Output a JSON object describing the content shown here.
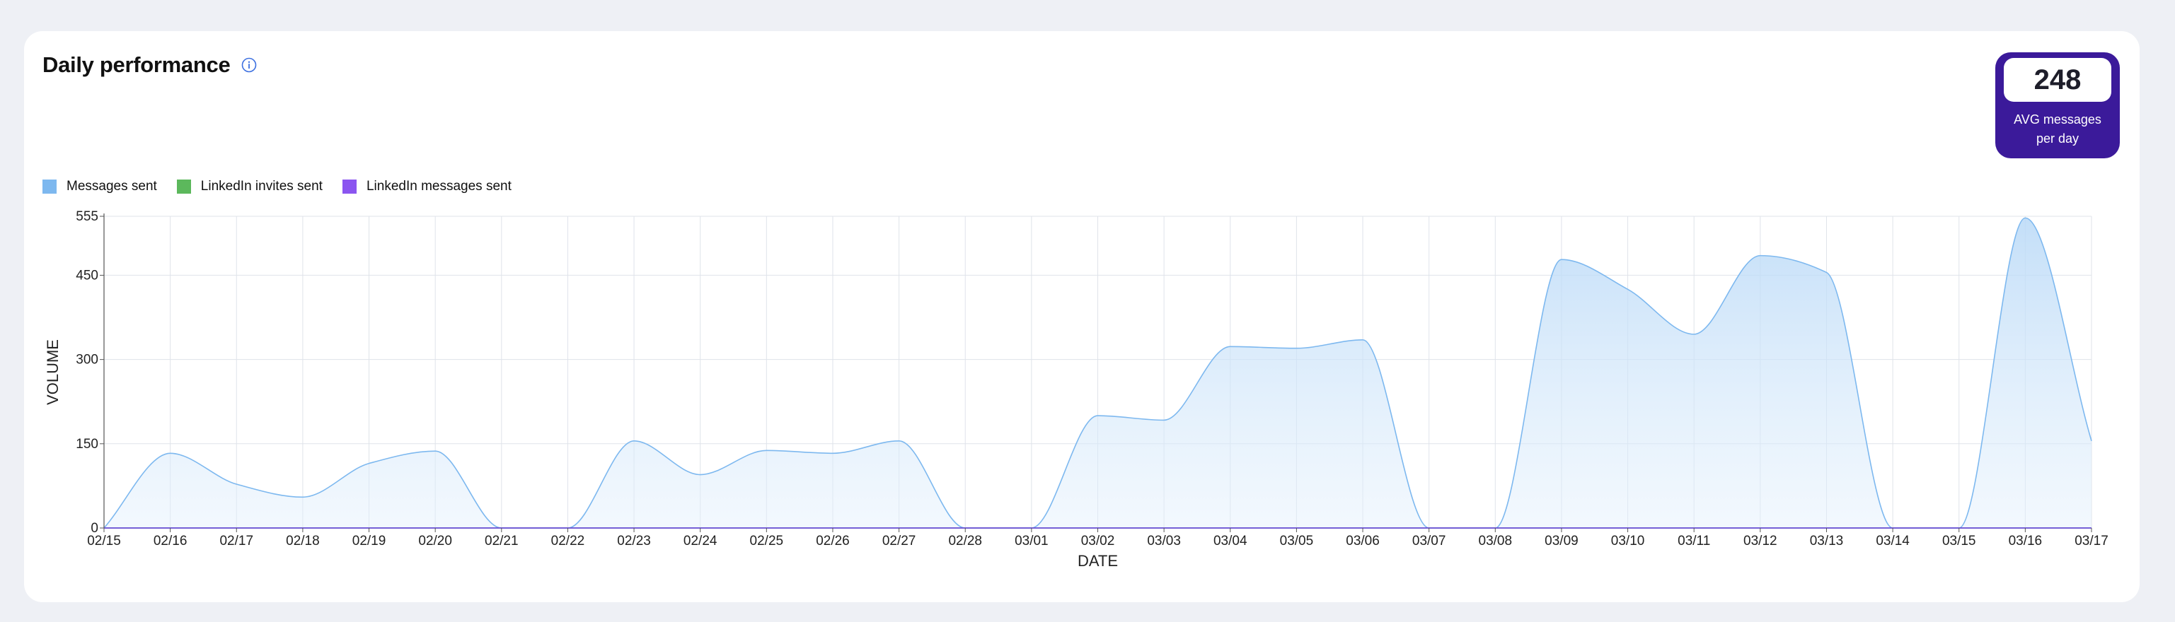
{
  "title": "Daily performance",
  "avg": {
    "value": "248",
    "label_line1": "AVG messages",
    "label_line2": "per day"
  },
  "legend": [
    {
      "label": "Messages sent",
      "color": "#7db8ef"
    },
    {
      "label": "LinkedIn invites sent",
      "color": "#5cb85c"
    },
    {
      "label": "LinkedIn messages sent",
      "color": "#8b55f0"
    }
  ],
  "chart_data": {
    "type": "area",
    "xlabel": "DATE",
    "ylabel": "VOLUME",
    "ylim": [
      0,
      555
    ],
    "yticks": [
      0,
      150,
      300,
      450,
      555
    ],
    "grid": true,
    "x": [
      "02/15",
      "02/16",
      "02/17",
      "02/18",
      "02/19",
      "02/20",
      "02/21",
      "02/22",
      "02/23",
      "02/24",
      "02/25",
      "02/26",
      "02/27",
      "02/28",
      "03/01",
      "03/02",
      "03/03",
      "03/04",
      "03/05",
      "03/06",
      "03/07",
      "03/08",
      "03/09",
      "03/10",
      "03/11",
      "03/12",
      "03/13",
      "03/14",
      "03/15",
      "03/16",
      "03/17"
    ],
    "series": [
      {
        "name": "Messages sent",
        "color": "#7db8ef",
        "values": [
          0,
          133,
          78,
          55,
          115,
          137,
          0,
          0,
          155,
          95,
          138,
          133,
          155,
          0,
          0,
          200,
          192,
          323,
          320,
          335,
          0,
          0,
          478,
          425,
          345,
          485,
          455,
          0,
          0,
          552,
          155
        ]
      },
      {
        "name": "LinkedIn invites sent",
        "color": "#5cb85c",
        "values": [
          0,
          0,
          0,
          0,
          0,
          0,
          0,
          0,
          0,
          0,
          0,
          0,
          0,
          0,
          0,
          0,
          0,
          0,
          0,
          0,
          0,
          0,
          0,
          0,
          0,
          0,
          0,
          0,
          0,
          0,
          0
        ]
      },
      {
        "name": "LinkedIn messages sent",
        "color": "#8b55f0",
        "values": [
          0,
          0,
          0,
          0,
          0,
          0,
          0,
          0,
          0,
          0,
          0,
          0,
          0,
          0,
          0,
          0,
          0,
          0,
          0,
          0,
          0,
          0,
          0,
          0,
          0,
          0,
          0,
          0,
          0,
          0,
          0
        ]
      }
    ]
  }
}
